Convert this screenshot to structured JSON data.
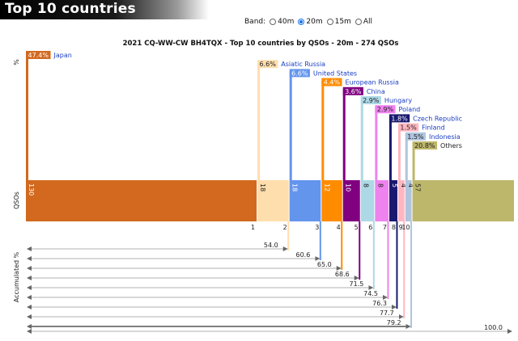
{
  "header": {
    "title": "Top 10 countries"
  },
  "band": {
    "label": "Band:",
    "options": [
      {
        "label": "40m",
        "selected": false
      },
      {
        "label": "20m",
        "selected": true
      },
      {
        "label": "15m",
        "selected": false
      },
      {
        "label": "All",
        "selected": false
      }
    ]
  },
  "chart_data": {
    "type": "bar",
    "title": "2021 CQ-WW-CW BH4TQX - Top 10 countries by QSOs - 20m - 274 QSOs",
    "total_qsos": 274,
    "ylabel_top": "%",
    "ylabel_middle": "QSOs",
    "ylabel_bottom": "Accumulated %",
    "categories": [
      "Japan",
      "Asiatic Russia",
      "United States",
      "European Russia",
      "China",
      "Hungary",
      "Poland",
      "Czech Republic",
      "Finland",
      "Indonesia",
      "Others"
    ],
    "rank_labels": [
      "1",
      "2",
      "3",
      "4",
      "5",
      "6",
      "7",
      "8",
      "9",
      "10",
      ""
    ],
    "values": [
      130,
      18,
      18,
      12,
      10,
      8,
      8,
      5,
      4,
      4,
      57
    ],
    "percent_labels": [
      "47.4%",
      "6.6%",
      "6.6%",
      "4.4%",
      "3.6%",
      "2.9%",
      "2.9%",
      "1.8%",
      "1.5%",
      "1.5%",
      "20.8%"
    ],
    "accumulated": [
      47.4,
      54.0,
      60.6,
      65.0,
      68.6,
      71.5,
      74.5,
      76.3,
      77.7,
      79.2,
      100.0
    ],
    "accumulated_labels": [
      "",
      "54.0",
      "60.6",
      "65.0",
      "68.6",
      "71.5",
      "74.5",
      "76.3",
      "77.7",
      "79.2",
      "100.0"
    ],
    "colors": [
      "#d2691e",
      "#ffdead",
      "#6495ed",
      "#ff8c00",
      "#800080",
      "#add8e6",
      "#ee82ee",
      "#191970",
      "#ffb6c1",
      "#b0c4de",
      "#bdb76b"
    ]
  }
}
